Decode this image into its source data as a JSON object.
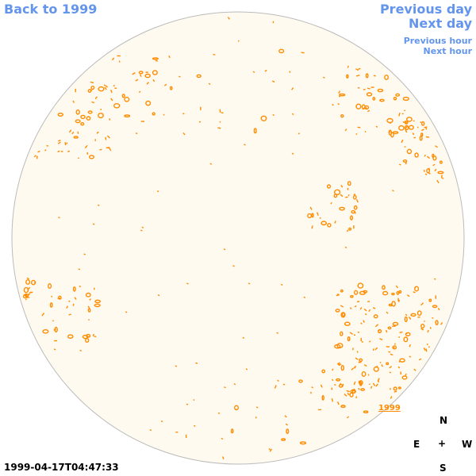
{
  "nav": {
    "back_label": "Back to 1999",
    "previous_day": "Previous day",
    "next_day": "Next day",
    "previous_hour": "Previous hour",
    "next_hour": "Next hour"
  },
  "year_label": "1999",
  "compass": {
    "north": "N",
    "east": "E",
    "center": "+",
    "west": "W",
    "south": "S"
  },
  "timestamp": "1999-04-17T04:47:33",
  "colors": {
    "background": "#ffffff",
    "disk_fill": "#fffaf0",
    "disk_border": "#bbbbbb",
    "contour": "#ff8c00",
    "link": "#6495ed"
  }
}
